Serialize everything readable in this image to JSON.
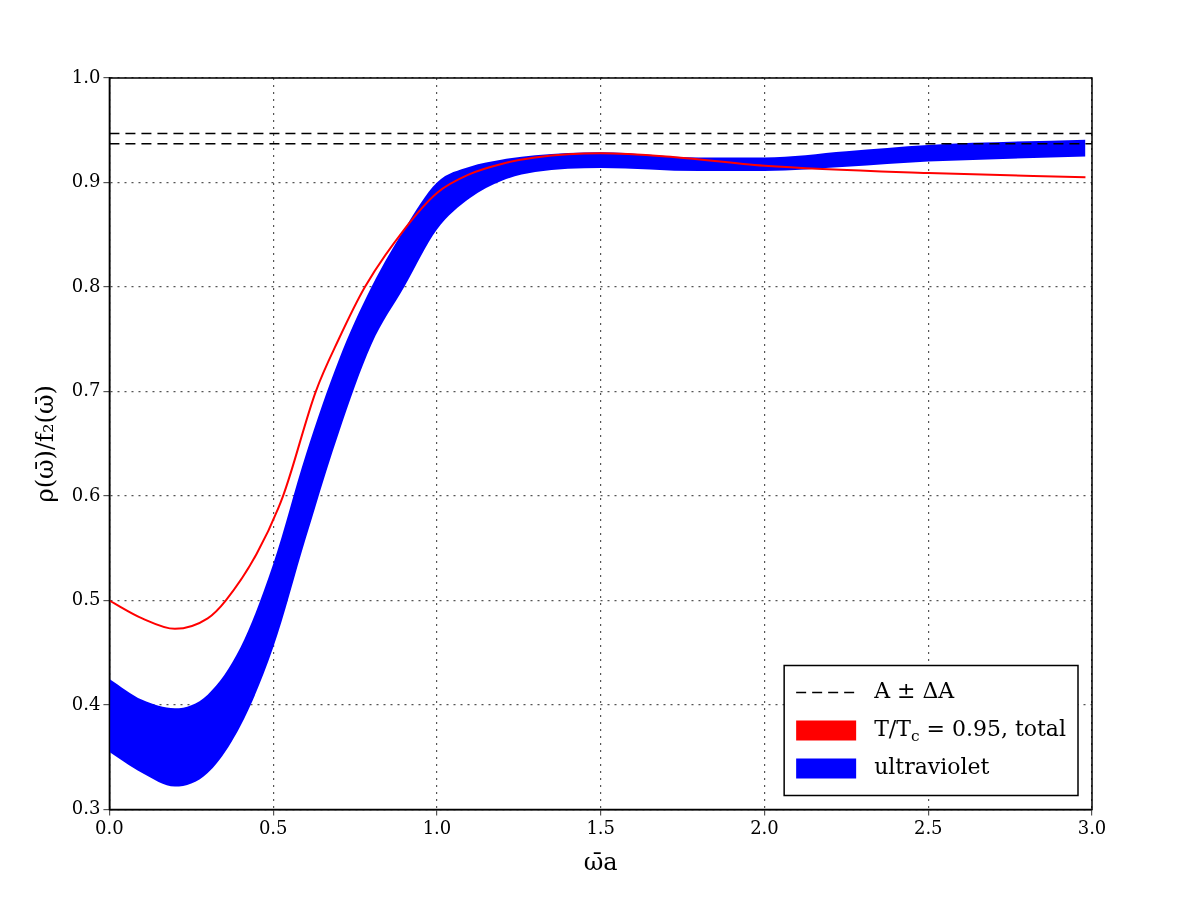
{
  "chart_data": {
    "type": "line",
    "xlabel": "ω̄a",
    "ylabel": "ρ(ω̄)/f₂(ω̄)",
    "xlim": [
      0,
      3
    ],
    "ylim": [
      0.3,
      1.0
    ],
    "xticks": [
      {
        "value": 0,
        "label": "0.0"
      },
      {
        "value": 0.5,
        "label": "0.5"
      },
      {
        "value": 1,
        "label": "1.0"
      },
      {
        "value": 1.5,
        "label": "1.5"
      },
      {
        "value": 2,
        "label": "2.0"
      },
      {
        "value": 2.5,
        "label": "2.5"
      },
      {
        "value": 3,
        "label": "3.0"
      }
    ],
    "yticks": [
      {
        "value": 0.3,
        "label": "0.3"
      },
      {
        "value": 0.4,
        "label": "0.4"
      },
      {
        "value": 0.5,
        "label": "0.5"
      },
      {
        "value": 0.6,
        "label": "0.6"
      },
      {
        "value": 0.7,
        "label": "0.7"
      },
      {
        "value": 0.8,
        "label": "0.8"
      },
      {
        "value": 0.9,
        "label": "0.9"
      },
      {
        "value": 1.0,
        "label": "1.0"
      }
    ],
    "grid": true,
    "legend": "bottom right",
    "line_style": "solid",
    "marker": "none",
    "series": [
      {
        "name": "T/T$_{c}$ = 0.95, total",
        "color": "#ff0000",
        "x": [
          0,
          0.1,
          0.2,
          0.3,
          0.355,
          0.45,
          0.53,
          0.63,
          0.7,
          0.78,
          0.9,
          1.0,
          1.1,
          1.2,
          1.3,
          1.5,
          1.7,
          2.0,
          2.5,
          2.98
        ],
        "values": [
          0.5,
          0.483,
          0.473,
          0.483,
          0.5,
          0.545,
          0.6,
          0.7,
          0.75,
          0.8,
          0.855,
          0.89,
          0.908,
          0.918,
          0.924,
          0.928,
          0.925,
          0.916,
          0.909,
          0.905
        ]
      },
      {
        "name": "ultraviolet",
        "color": "#0000ff",
        "x": [
          0,
          0.1,
          0.2,
          0.3,
          0.4,
          0.5,
          0.6,
          0.7,
          0.8,
          0.9,
          1.0,
          1.1,
          1.2,
          1.3,
          1.5,
          1.8,
          2.0,
          2.25,
          2.5,
          2.98
        ],
        "values": [
          null,
          null,
          null,
          null,
          null,
          null,
          null,
          null,
          null,
          null,
          null,
          null,
          null,
          null,
          null,
          null,
          null,
          null,
          null,
          null
        ],
        "lower": [
          0.355,
          0.335,
          0.322,
          0.335,
          0.38,
          0.455,
          0.56,
          0.66,
          0.745,
          0.8,
          0.855,
          0.885,
          0.902,
          0.91,
          0.914,
          0.911,
          0.911,
          0.915,
          0.92,
          0.925
        ],
        "upper": [
          0.425,
          0.405,
          0.397,
          0.41,
          0.455,
          0.535,
          0.64,
          0.73,
          0.8,
          0.855,
          0.9,
          0.915,
          0.922,
          0.926,
          0.929,
          0.924,
          0.924,
          0.93,
          0.936,
          0.941
        ]
      }
    ],
    "ref_lines": [
      {
        "axis": "y",
        "value": 0.947,
        "label": "A ± ΔA",
        "color": "#000000",
        "line_style": "dashed"
      },
      {
        "axis": "y",
        "value": 0.937,
        "color": "#000000",
        "line_style": "dashed"
      }
    ]
  }
}
